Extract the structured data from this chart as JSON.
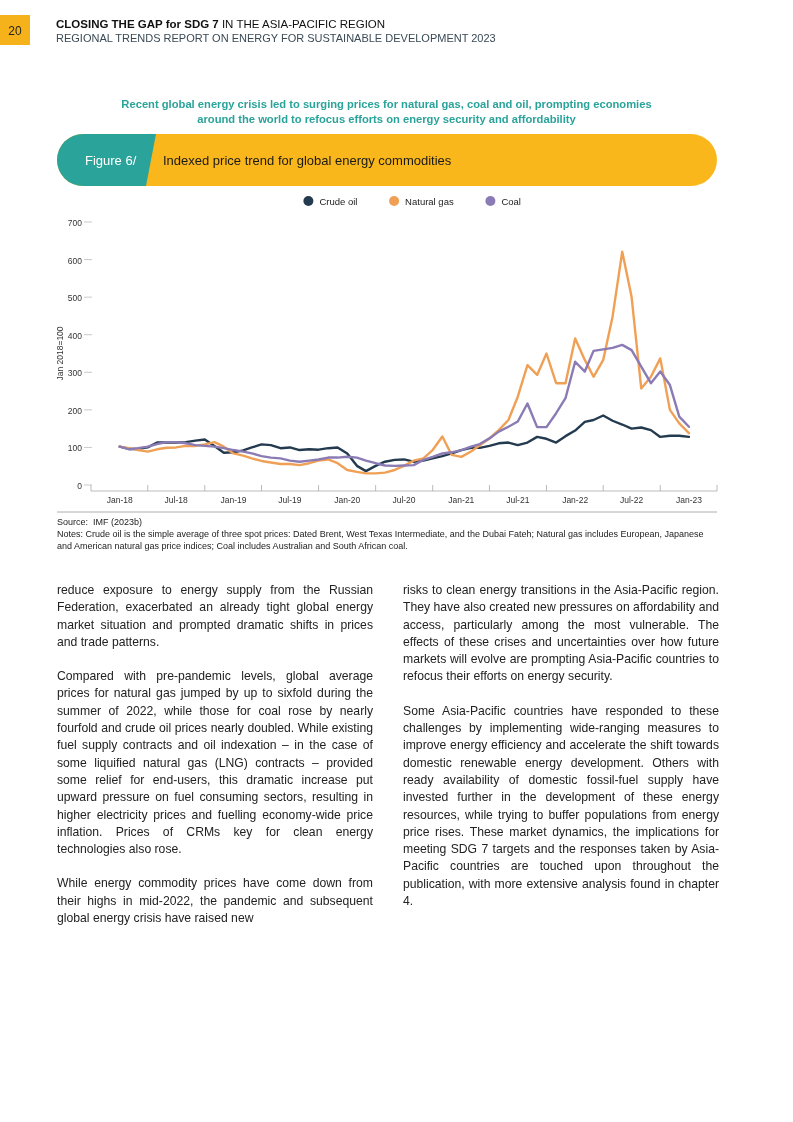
{
  "chart_data": {
    "type": "line",
    "title": "Indexed price trend for global energy commodities",
    "subtitle": "Recent global energy crisis led to surging prices for natural gas, coal and oil, prompting economies around the world to refocus efforts on energy security and affordability",
    "ylabel": "Jan 2018=100",
    "annotations": [
      "20",
      "CLOSING THE GAP for SDG 7",
      " IN THE ASIA-PACIFIC REGION",
      "REGIONAL TRENDS REPORT ON ENERGY FOR SUSTAINABLE DEVELOPMENT 2023",
      "Figure 6/",
      "Source:  IMF (2023b)",
      "Notes: Crude oil is the simple average of three spot prices: Dated Brent, West Texas Intermediate, and the Dubai Fateh; Natural gas includes European, Japanese and American natural gas price indices; Coal includes Australian and South African coal.",
      "reduce exposure to energy supply from the Russian Federation, exacerbated an already tight global energy market situation and prompted dramatic shifts in prices and trade patterns.",
      "Compared with pre-pandemic levels, global average prices for natural gas jumped by up to sixfold during the summer of 2022, while those for coal rose by nearly fourfold and crude oil prices nearly doubled. While existing fuel supply contracts and oil indexation – in the case of some liquified natural gas (LNG) contracts – provided some relief for end-users, this dramatic increase put upward pressure on fuel consuming sectors, resulting in higher electricity prices and fuelling economy-wide price inflation. Prices of CRMs key for clean energy technologies also rose.",
      "While energy commodity prices have come down from their highs in mid-2022, the pandemic and subsequent global energy crisis have raised new",
      "risks to clean energy transitions in the Asia-Pacific region. They have also created new pressures on affordability and access, particularly among the most vulnerable. The effects of these crises and uncertainties over how future markets will evolve are prompting Asia-Pacific countries to refocus their efforts on energy security.",
      "Some Asia-Pacific countries have responded to these challenges by implementing wide-ranging measures to improve energy efficiency and accelerate the shift towards domestic renewable energy development. Others with ready availability of domestic fossil-fuel supply have invested further in the development of these energy resources, while trying to buffer populations from energy price rises. These market dynamics, the implications for meeting SDG 7 targets and the responses taken by Asia-Pacific countries are touched upon throughout the publication, with more extensive analysis found in chapter 4."
    ],
    "x": [
      "2018-01",
      "2018-02",
      "2018-03",
      "2018-04",
      "2018-05",
      "2018-06",
      "2018-07",
      "2018-08",
      "2018-09",
      "2018-10",
      "2018-11",
      "2018-12",
      "2019-01",
      "2019-02",
      "2019-03",
      "2019-04",
      "2019-05",
      "2019-06",
      "2019-07",
      "2019-08",
      "2019-09",
      "2019-10",
      "2019-11",
      "2019-12",
      "2020-01",
      "2020-02",
      "2020-03",
      "2020-04",
      "2020-05",
      "2020-06",
      "2020-07",
      "2020-08",
      "2020-09",
      "2020-10",
      "2020-11",
      "2020-12",
      "2021-01",
      "2021-02",
      "2021-03",
      "2021-04",
      "2021-05",
      "2021-06",
      "2021-07",
      "2021-08",
      "2021-09",
      "2021-10",
      "2021-11",
      "2021-12",
      "2022-01",
      "2022-02",
      "2022-03",
      "2022-04",
      "2022-05",
      "2022-06",
      "2022-07",
      "2022-08",
      "2022-09",
      "2022-10",
      "2022-11",
      "2022-12",
      "2023-01"
    ],
    "series": [
      {
        "name": "Crude oil",
        "color": "#243a4f",
        "values": [
          102,
          96,
          96,
          100,
          113,
          113,
          113,
          114,
          118,
          121,
          104,
          86,
          87,
          92,
          100,
          108,
          106,
          98,
          100,
          93,
          95,
          94,
          98,
          100,
          84,
          51,
          37,
          51,
          62,
          67,
          68,
          62,
          65,
          71,
          77,
          84,
          93,
          99,
          99,
          104,
          111,
          113,
          106,
          113,
          128,
          123,
          113,
          130,
          145,
          168,
          173,
          185,
          171,
          161,
          150,
          153,
          146,
          128,
          131,
          131,
          128
        ]
      },
      {
        "name": "Natural gas",
        "color": "#f0a055",
        "values": [
          102,
          98,
          93,
          89,
          95,
          99,
          100,
          104,
          104,
          108,
          114,
          102,
          84,
          78,
          71,
          64,
          60,
          56,
          56,
          53,
          58,
          65,
          68,
          58,
          40,
          35,
          31,
          31,
          33,
          40,
          51,
          65,
          71,
          93,
          129,
          80,
          75,
          89,
          106,
          124,
          146,
          173,
          235,
          319,
          293,
          350,
          271,
          271,
          390,
          333,
          288,
          333,
          448,
          621,
          501,
          257,
          288,
          337,
          200,
          164,
          138
        ]
      },
      {
        "name": "Coal",
        "color": "#8b7bb5",
        "values": [
          102,
          95,
          98,
          102,
          109,
          114,
          114,
          111,
          106,
          104,
          102,
          98,
          93,
          89,
          84,
          77,
          73,
          71,
          65,
          62,
          65,
          68,
          73,
          73,
          75,
          73,
          65,
          58,
          52,
          51,
          52,
          53,
          67,
          75,
          84,
          87,
          93,
          102,
          109,
          124,
          142,
          155,
          169,
          217,
          154,
          154,
          191,
          231,
          328,
          302,
          357,
          361,
          365,
          373,
          359,
          315,
          271,
          302,
          266,
          182,
          155
        ]
      }
    ],
    "xlim": [
      "2017-10",
      "2023-04"
    ],
    "xticks": [
      {
        "value": "2017-10",
        "label": null
      },
      {
        "value": "2018-01",
        "label": "Jan-18"
      },
      {
        "value": "2018-04",
        "label": null
      },
      {
        "value": "2018-07",
        "label": "Jul-18"
      },
      {
        "value": "2018-10",
        "label": null
      },
      {
        "value": "2019-01",
        "label": "Jan-19"
      },
      {
        "value": "2019-04",
        "label": null
      },
      {
        "value": "2019-07",
        "label": "Jul-19"
      },
      {
        "value": "2019-10",
        "label": null
      },
      {
        "value": "2020-01",
        "label": "Jan-20"
      },
      {
        "value": "2020-04",
        "label": null
      },
      {
        "value": "2020-07",
        "label": "Jul-20"
      },
      {
        "value": "2020-10",
        "label": null
      },
      {
        "value": "2021-01",
        "label": "Jan-21"
      },
      {
        "value": "2021-04",
        "label": null
      },
      {
        "value": "2021-07",
        "label": "Jul-21"
      },
      {
        "value": "2021-10",
        "label": null
      },
      {
        "value": "2022-01",
        "label": "Jan-22"
      },
      {
        "value": "2022-04",
        "label": null
      },
      {
        "value": "2022-07",
        "label": "Jul-22"
      },
      {
        "value": "2022-10",
        "label": null
      },
      {
        "value": "2023-01",
        "label": "Jan-23"
      },
      {
        "value": "2023-04",
        "label": null
      }
    ],
    "ylim": [
      0,
      700
    ],
    "yticks": [
      0,
      100,
      200,
      300,
      400,
      500,
      600,
      700
    ],
    "legend": "top",
    "marker": "none",
    "line_style": "solid"
  }
}
